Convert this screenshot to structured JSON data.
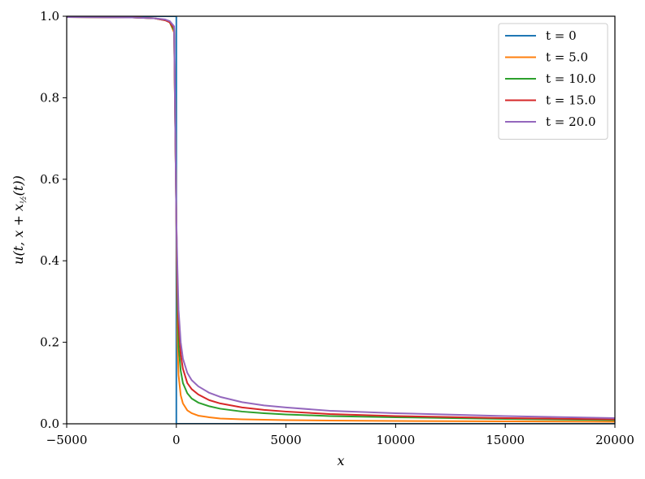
{
  "chart_data": {
    "type": "line",
    "title": "",
    "xlabel": "x",
    "ylabel": "u(t, x + x",
    "ylabel_sub": "½",
    "ylabel_tail": "(t))",
    "xlim": [
      -5000,
      20000
    ],
    "ylim": [
      0,
      1.0
    ],
    "x_ticks": [
      -5000,
      0,
      5000,
      10000,
      15000,
      20000
    ],
    "x_tick_labels": [
      "−5000",
      "0",
      "5000",
      "10000",
      "15000",
      "20000"
    ],
    "y_ticks": [
      0,
      0.2,
      0.4,
      0.6,
      0.8,
      1.0
    ],
    "y_tick_labels": [
      "0.0",
      "0.2",
      "0.4",
      "0.6",
      "0.8",
      "1.0"
    ],
    "grid": false,
    "legend_position": "top-right",
    "series": [
      {
        "name": "t = 0",
        "color": "#1f77b4",
        "x": [
          -5000,
          -0.1,
          0,
          0.1,
          20000
        ],
        "y": [
          1.0,
          1.0,
          0.5,
          0.0,
          0.0
        ]
      },
      {
        "name": "t = 5.0",
        "color": "#ff7f0e",
        "x": [
          -5000,
          -2000,
          -1000,
          -500,
          -300,
          -100,
          0,
          50,
          100,
          200,
          300,
          500,
          700,
          1000,
          1500,
          2000,
          3000,
          4000,
          5000,
          7000,
          10000,
          15000,
          20000
        ],
        "y": [
          0.998,
          0.997,
          0.995,
          0.99,
          0.985,
          0.96,
          0.5,
          0.2,
          0.12,
          0.07,
          0.05,
          0.033,
          0.026,
          0.02,
          0.016,
          0.013,
          0.011,
          0.01,
          0.009,
          0.008,
          0.007,
          0.006,
          0.005
        ]
      },
      {
        "name": "t = 10.0",
        "color": "#2ca02c",
        "x": [
          -5000,
          -2000,
          -1000,
          -500,
          -300,
          -100,
          0,
          50,
          100,
          200,
          300,
          500,
          700,
          1000,
          1500,
          2000,
          3000,
          4000,
          5000,
          7000,
          10000,
          15000,
          20000
        ],
        "y": [
          0.998,
          0.997,
          0.995,
          0.99,
          0.985,
          0.965,
          0.5,
          0.28,
          0.19,
          0.13,
          0.1,
          0.075,
          0.062,
          0.052,
          0.043,
          0.037,
          0.03,
          0.026,
          0.023,
          0.019,
          0.016,
          0.012,
          0.009
        ]
      },
      {
        "name": "t = 15.0",
        "color": "#d62728",
        "x": [
          -5000,
          -2000,
          -1000,
          -500,
          -300,
          -100,
          0,
          50,
          100,
          200,
          300,
          500,
          700,
          1000,
          1500,
          2000,
          3000,
          4000,
          5000,
          7000,
          10000,
          15000,
          20000
        ],
        "y": [
          0.998,
          0.997,
          0.995,
          0.99,
          0.985,
          0.97,
          0.5,
          0.33,
          0.24,
          0.17,
          0.135,
          0.1,
          0.085,
          0.072,
          0.058,
          0.05,
          0.04,
          0.034,
          0.03,
          0.024,
          0.019,
          0.014,
          0.011
        ]
      },
      {
        "name": "t = 20.0",
        "color": "#9467bd",
        "x": [
          -5000,
          -2000,
          -1000,
          -500,
          -300,
          -100,
          0,
          50,
          100,
          200,
          300,
          500,
          700,
          1000,
          1500,
          2000,
          3000,
          4000,
          5000,
          7000,
          10000,
          15000,
          20000
        ],
        "y": [
          0.998,
          0.997,
          0.995,
          0.992,
          0.988,
          0.975,
          0.5,
          0.38,
          0.28,
          0.2,
          0.16,
          0.125,
          0.107,
          0.092,
          0.076,
          0.066,
          0.053,
          0.045,
          0.04,
          0.032,
          0.026,
          0.019,
          0.014
        ]
      }
    ]
  }
}
